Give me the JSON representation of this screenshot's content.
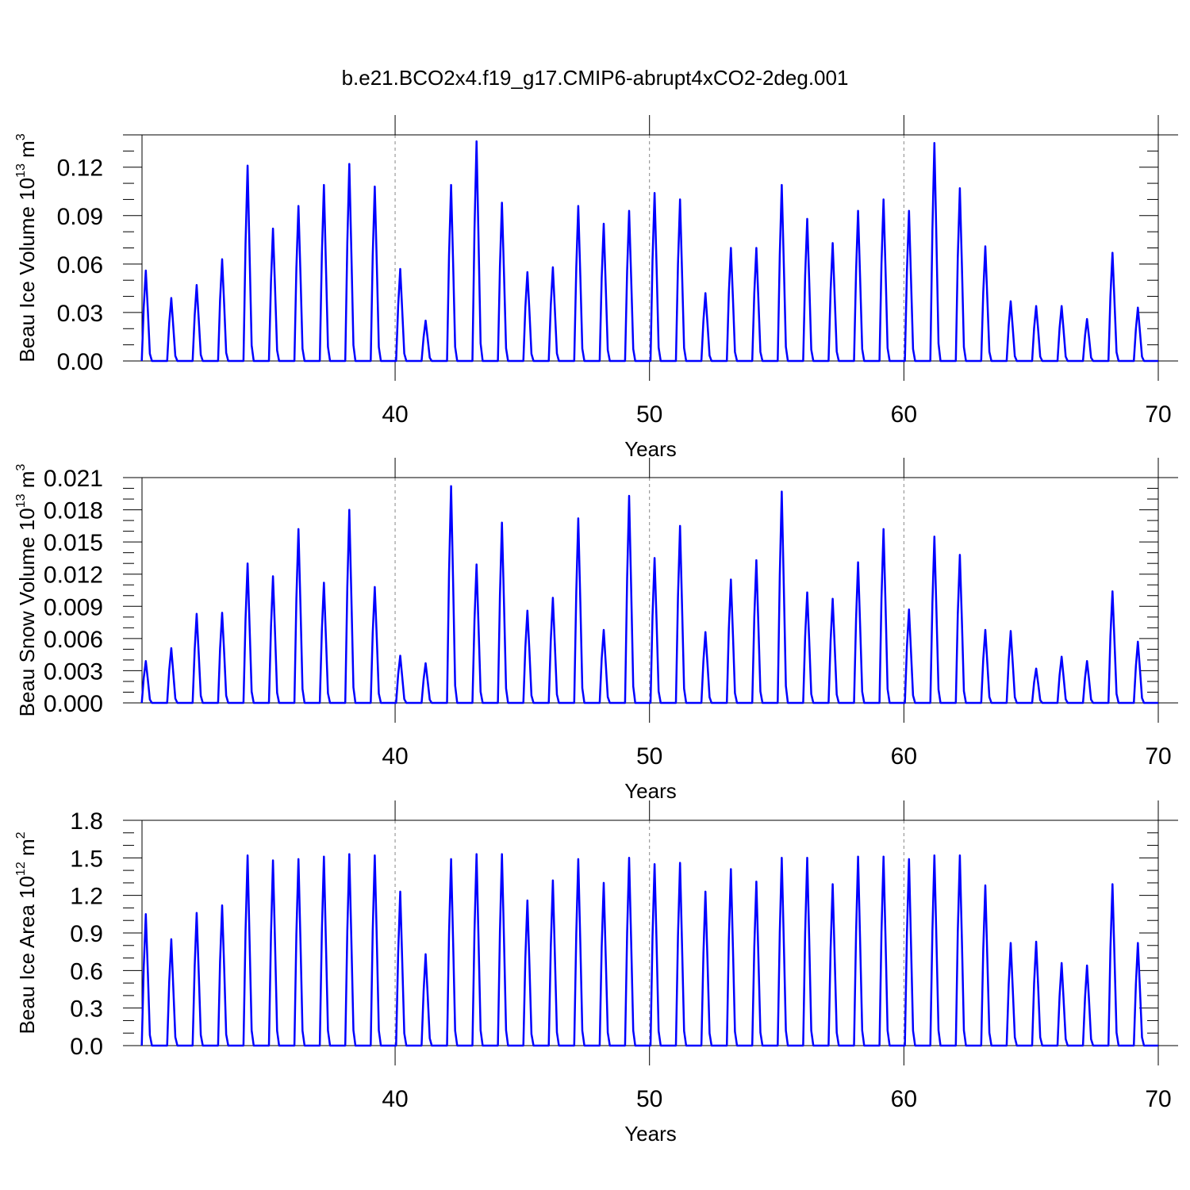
{
  "figure_title": "b.e21.BCO2x4.f19_g17.CMIP6-abrupt4xCO2-2deg.001",
  "colors": {
    "line": "#0000ff",
    "axis": "#000000",
    "grid": "#888888"
  },
  "chart_data": [
    {
      "type": "line",
      "name": "ice-volume",
      "ylabel": {
        "text": "Beau Ice Volume 10",
        "sup": "13",
        "unit": " m",
        "unit_sup": "3"
      },
      "xlabel": "Years",
      "xlim": [
        30.05,
        70
      ],
      "ylim": [
        0,
        0.14
      ],
      "x_ticks": [
        40,
        50,
        60,
        70
      ],
      "x_tick_labels": [
        "40",
        "50",
        "60",
        "70"
      ],
      "y_ticks": [
        0,
        0.03,
        0.06,
        0.09,
        0.12
      ],
      "y_tick_labels": [
        "0.00",
        "0.03",
        "0.06",
        "0.09",
        "0.12"
      ],
      "grid_x": [
        40,
        50,
        60
      ],
      "series": [
        {
          "name": "Beau Ice Volume",
          "peaks": [
            0.056,
            0.039,
            0.047,
            0.063,
            0.121,
            0.082,
            0.096,
            0.109,
            0.122,
            0.108,
            0.057,
            0.025,
            0.109,
            0.136,
            0.098,
            0.055,
            0.058,
            0.096,
            0.085,
            0.093,
            0.104,
            0.1,
            0.042,
            0.07,
            0.07,
            0.109,
            0.088,
            0.073,
            0.093,
            0.1,
            0.093,
            0.135,
            0.107,
            0.071,
            0.037,
            0.034,
            0.034,
            0.026,
            0.067,
            0.033
          ]
        }
      ]
    },
    {
      "type": "line",
      "name": "snow-volume",
      "ylabel": {
        "text": "Beau Snow Volume 10",
        "sup": "13",
        "unit": " m",
        "unit_sup": "3"
      },
      "xlabel": "Years",
      "xlim": [
        30.05,
        70
      ],
      "ylim": [
        0,
        0.021
      ],
      "x_ticks": [
        40,
        50,
        60,
        70
      ],
      "x_tick_labels": [
        "40",
        "50",
        "60",
        "70"
      ],
      "y_ticks": [
        0,
        0.003,
        0.006,
        0.009,
        0.012,
        0.015,
        0.018,
        0.021
      ],
      "y_tick_labels": [
        "0.000",
        "0.003",
        "0.006",
        "0.009",
        "0.012",
        "0.015",
        "0.018",
        "0.021"
      ],
      "grid_x": [
        40,
        50,
        60
      ],
      "series": [
        {
          "name": "Beau Snow Volume",
          "peaks": [
            0.0039,
            0.0051,
            0.0083,
            0.0084,
            0.013,
            0.0118,
            0.0162,
            0.0112,
            0.018,
            0.0108,
            0.0044,
            0.0037,
            0.0202,
            0.0129,
            0.0168,
            0.0086,
            0.0098,
            0.0172,
            0.0068,
            0.0193,
            0.0135,
            0.0165,
            0.0066,
            0.0115,
            0.0133,
            0.0197,
            0.0103,
            0.0097,
            0.0131,
            0.0162,
            0.0087,
            0.0155,
            0.0138,
            0.0068,
            0.0067,
            0.0032,
            0.0043,
            0.0039,
            0.0104,
            0.0057
          ]
        }
      ]
    },
    {
      "type": "line",
      "name": "ice-area",
      "ylabel": {
        "text": "Beau Ice Area 10",
        "sup": "12",
        "unit": " m",
        "unit_sup": "2"
      },
      "xlabel": "Years",
      "xlim": [
        30.05,
        70
      ],
      "ylim": [
        0,
        1.8
      ],
      "x_ticks": [
        40,
        50,
        60,
        70
      ],
      "x_tick_labels": [
        "40",
        "50",
        "60",
        "70"
      ],
      "y_ticks": [
        0,
        0.3,
        0.6,
        0.9,
        1.2,
        1.5,
        1.8
      ],
      "y_tick_labels": [
        "0.0",
        "0.3",
        "0.6",
        "0.9",
        "1.2",
        "1.5",
        "1.8"
      ],
      "grid_x": [
        40,
        50,
        60
      ],
      "series": [
        {
          "name": "Beau Ice Area",
          "peaks": [
            1.05,
            0.85,
            1.06,
            1.12,
            1.52,
            1.48,
            1.49,
            1.51,
            1.53,
            1.52,
            1.23,
            0.73,
            1.49,
            1.53,
            1.53,
            1.16,
            1.32,
            1.49,
            1.3,
            1.5,
            1.45,
            1.46,
            1.23,
            1.41,
            1.31,
            1.5,
            1.5,
            1.29,
            1.51,
            1.51,
            1.49,
            1.52,
            1.52,
            1.28,
            0.82,
            0.83,
            0.66,
            0.64,
            1.29,
            0.82
          ]
        }
      ]
    }
  ]
}
